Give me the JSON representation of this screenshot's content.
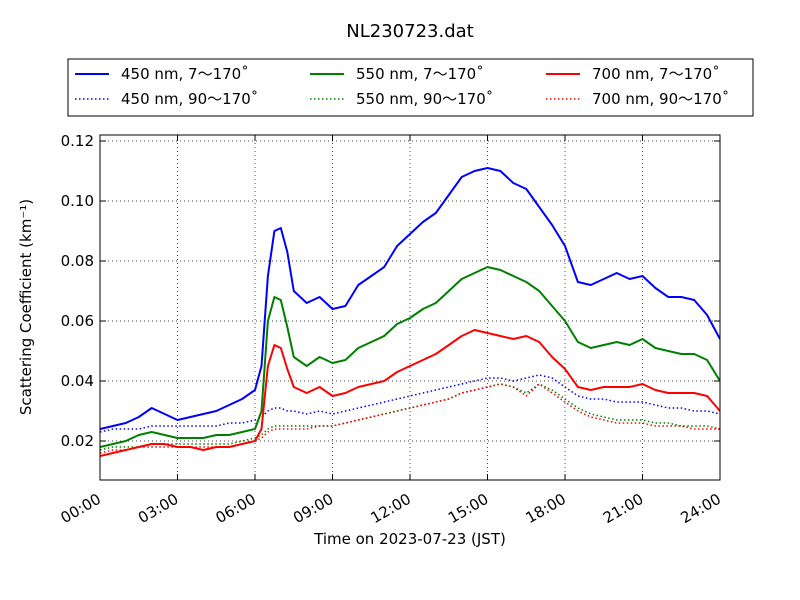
{
  "chart_data": {
    "type": "line",
    "title": "NL230723.dat",
    "xlabel": "Time on 2023-07-23 (JST)",
    "ylabel": "Scattering Coefficient (km⁻¹)",
    "xlim": [
      "00:00",
      "24:00"
    ],
    "ylim": [
      0.007,
      0.122
    ],
    "x_ticks": [
      "00:00",
      "03:00",
      "06:00",
      "09:00",
      "12:00",
      "15:00",
      "18:00",
      "21:00",
      "24:00"
    ],
    "y_ticks": [
      "0.02",
      "0.04",
      "0.06",
      "0.08",
      "0.10",
      "0.12"
    ],
    "grid": true,
    "legend_position": "top",
    "x": [
      "00:00",
      "00:30",
      "01:00",
      "01:30",
      "02:00",
      "02:30",
      "03:00",
      "03:30",
      "04:00",
      "04:30",
      "05:00",
      "05:30",
      "06:00",
      "06:15",
      "06:30",
      "06:45",
      "07:00",
      "07:15",
      "07:30",
      "08:00",
      "08:30",
      "09:00",
      "09:30",
      "10:00",
      "10:30",
      "11:00",
      "11:30",
      "12:00",
      "12:30",
      "13:00",
      "13:30",
      "14:00",
      "14:30",
      "15:00",
      "15:30",
      "16:00",
      "16:30",
      "17:00",
      "17:30",
      "18:00",
      "18:30",
      "19:00",
      "19:30",
      "20:00",
      "20:30",
      "21:00",
      "21:30",
      "22:00",
      "22:30",
      "23:00",
      "23:30",
      "24:00"
    ],
    "series": [
      {
        "name": "450 nm, 7～170˚",
        "color": "#0000ff",
        "style": "solid",
        "values": [
          0.024,
          0.025,
          0.026,
          0.028,
          0.031,
          0.029,
          0.027,
          0.028,
          0.029,
          0.03,
          0.032,
          0.034,
          0.037,
          0.045,
          0.075,
          0.09,
          0.091,
          0.083,
          0.07,
          0.066,
          0.068,
          0.064,
          0.065,
          0.072,
          0.075,
          0.078,
          0.085,
          0.089,
          0.093,
          0.096,
          0.102,
          0.108,
          0.11,
          0.111,
          0.11,
          0.106,
          0.104,
          0.098,
          0.092,
          0.085,
          0.073,
          0.072,
          0.074,
          0.076,
          0.074,
          0.075,
          0.071,
          0.068,
          0.068,
          0.067,
          0.062,
          0.054
        ]
      },
      {
        "name": "450 nm, 90～170˚",
        "color": "#0000ff",
        "style": "dotted",
        "values": [
          0.023,
          0.024,
          0.024,
          0.024,
          0.025,
          0.025,
          0.025,
          0.025,
          0.025,
          0.025,
          0.026,
          0.026,
          0.027,
          0.028,
          0.03,
          0.031,
          0.031,
          0.03,
          0.03,
          0.029,
          0.03,
          0.029,
          0.03,
          0.031,
          0.032,
          0.033,
          0.034,
          0.035,
          0.036,
          0.037,
          0.038,
          0.039,
          0.04,
          0.041,
          0.041,
          0.04,
          0.041,
          0.042,
          0.041,
          0.038,
          0.035,
          0.034,
          0.034,
          0.033,
          0.033,
          0.033,
          0.032,
          0.031,
          0.031,
          0.03,
          0.03,
          0.029
        ]
      },
      {
        "name": "550 nm, 7～170˚",
        "color": "#008000",
        "style": "solid",
        "values": [
          0.018,
          0.019,
          0.02,
          0.022,
          0.023,
          0.022,
          0.021,
          0.021,
          0.021,
          0.022,
          0.022,
          0.023,
          0.024,
          0.03,
          0.06,
          0.068,
          0.067,
          0.058,
          0.048,
          0.045,
          0.048,
          0.046,
          0.047,
          0.051,
          0.053,
          0.055,
          0.059,
          0.061,
          0.064,
          0.066,
          0.07,
          0.074,
          0.076,
          0.078,
          0.077,
          0.075,
          0.073,
          0.07,
          0.065,
          0.06,
          0.053,
          0.051,
          0.052,
          0.053,
          0.052,
          0.054,
          0.051,
          0.05,
          0.049,
          0.049,
          0.047,
          0.04
        ]
      },
      {
        "name": "550 nm, 90～170˚",
        "color": "#008000",
        "style": "dotted",
        "values": [
          0.017,
          0.018,
          0.018,
          0.018,
          0.019,
          0.019,
          0.019,
          0.019,
          0.019,
          0.019,
          0.019,
          0.02,
          0.021,
          0.022,
          0.024,
          0.025,
          0.025,
          0.025,
          0.025,
          0.025,
          0.025,
          0.025,
          0.026,
          0.027,
          0.028,
          0.029,
          0.03,
          0.031,
          0.032,
          0.033,
          0.034,
          0.036,
          0.037,
          0.038,
          0.039,
          0.038,
          0.036,
          0.039,
          0.037,
          0.034,
          0.031,
          0.029,
          0.028,
          0.027,
          0.027,
          0.027,
          0.026,
          0.026,
          0.025,
          0.025,
          0.025,
          0.024
        ]
      },
      {
        "name": "700 nm, 7～170˚",
        "color": "#ff0000",
        "style": "solid",
        "values": [
          0.015,
          0.016,
          0.017,
          0.018,
          0.019,
          0.019,
          0.018,
          0.018,
          0.017,
          0.018,
          0.018,
          0.019,
          0.02,
          0.024,
          0.045,
          0.052,
          0.051,
          0.044,
          0.038,
          0.036,
          0.038,
          0.035,
          0.036,
          0.038,
          0.039,
          0.04,
          0.043,
          0.045,
          0.047,
          0.049,
          0.052,
          0.055,
          0.057,
          0.056,
          0.055,
          0.054,
          0.055,
          0.053,
          0.048,
          0.044,
          0.038,
          0.037,
          0.038,
          0.038,
          0.038,
          0.039,
          0.037,
          0.036,
          0.036,
          0.036,
          0.035,
          0.03
        ]
      },
      {
        "name": "700 nm, 90～170˚",
        "color": "#ff0000",
        "style": "dotted",
        "values": [
          0.016,
          0.017,
          0.017,
          0.018,
          0.018,
          0.018,
          0.018,
          0.018,
          0.018,
          0.018,
          0.018,
          0.019,
          0.02,
          0.021,
          0.023,
          0.024,
          0.024,
          0.024,
          0.024,
          0.024,
          0.025,
          0.025,
          0.026,
          0.027,
          0.028,
          0.029,
          0.03,
          0.031,
          0.032,
          0.033,
          0.034,
          0.036,
          0.037,
          0.038,
          0.039,
          0.038,
          0.035,
          0.039,
          0.036,
          0.033,
          0.03,
          0.028,
          0.027,
          0.026,
          0.026,
          0.026,
          0.025,
          0.025,
          0.025,
          0.024,
          0.024,
          0.024
        ]
      }
    ]
  }
}
